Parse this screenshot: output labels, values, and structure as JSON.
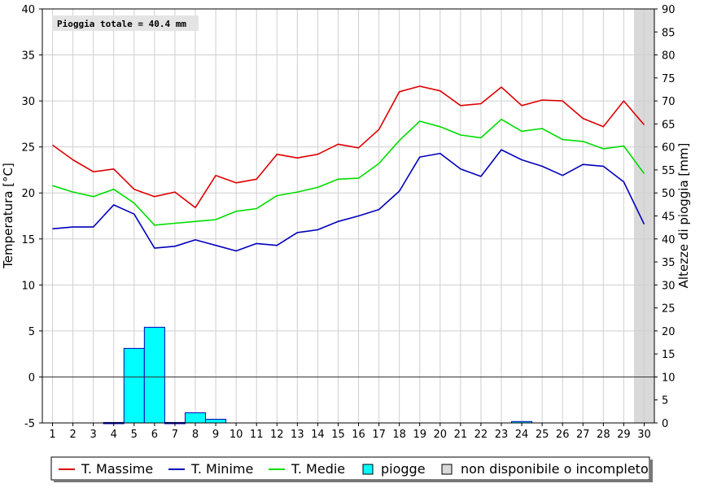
{
  "chart_data": {
    "type": "line",
    "annotation": "Pioggia totale = 40.4 mm",
    "ylabel": "Temperatura [°C]",
    "y2label": "Altezze di pioggia [mm]",
    "ylim": [
      -5,
      40
    ],
    "y2lim": [
      0,
      90
    ],
    "yticks": [
      -5,
      0,
      5,
      10,
      15,
      20,
      25,
      30,
      35,
      40
    ],
    "y2ticks": [
      0,
      5,
      10,
      15,
      20,
      25,
      30,
      35,
      40,
      45,
      50,
      55,
      60,
      65,
      70,
      75,
      80,
      85,
      90
    ],
    "x": [
      1,
      2,
      3,
      4,
      5,
      6,
      7,
      8,
      9,
      10,
      11,
      12,
      13,
      14,
      15,
      16,
      17,
      18,
      19,
      20,
      21,
      22,
      23,
      24,
      25,
      26,
      27,
      28,
      29,
      30
    ],
    "grid": true,
    "colors": {
      "max": "#dd0000",
      "min": "#0000bb",
      "mean": "#00dd00",
      "rain": "#00ffff",
      "unavailable": "#d9d9d9"
    },
    "series": [
      {
        "name": "T. Massime",
        "key": "max",
        "values": [
          25.2,
          23.6,
          22.3,
          22.6,
          20.4,
          19.6,
          20.1,
          18.4,
          21.9,
          21.1,
          21.5,
          24.2,
          23.8,
          24.2,
          25.3,
          24.9,
          26.9,
          31.0,
          31.6,
          31.1,
          29.5,
          29.7,
          31.5,
          29.5,
          30.1,
          30.0,
          28.1,
          27.2,
          30.0,
          27.4
        ]
      },
      {
        "name": "T. Minime",
        "key": "min",
        "values": [
          16.1,
          16.3,
          16.3,
          18.7,
          17.7,
          14.0,
          14.2,
          14.9,
          14.3,
          13.7,
          14.5,
          14.3,
          15.7,
          16.0,
          16.9,
          17.5,
          18.2,
          20.2,
          23.9,
          24.3,
          22.6,
          21.8,
          24.7,
          23.6,
          22.9,
          21.9,
          23.1,
          22.9,
          21.2,
          16.6
        ]
      },
      {
        "name": "T. Medie",
        "key": "mean",
        "values": [
          20.8,
          20.1,
          19.6,
          20.4,
          18.9,
          16.5,
          16.7,
          16.9,
          17.1,
          18.0,
          18.3,
          19.7,
          20.1,
          20.6,
          21.5,
          21.6,
          23.2,
          25.7,
          27.8,
          27.2,
          26.3,
          26.0,
          28.0,
          26.7,
          27.0,
          25.8,
          25.6,
          24.8,
          25.1,
          22.1
        ]
      }
    ],
    "rain": {
      "name": "piogge",
      "values": [
        0,
        0,
        0,
        0.1,
        16.2,
        20.8,
        0.1,
        2.2,
        0.8,
        0,
        0,
        0,
        0,
        0,
        0,
        0,
        0,
        0,
        0,
        0,
        0,
        0,
        0,
        0.3,
        0,
        0,
        0,
        0,
        0,
        0
      ]
    },
    "unavailable": {
      "name": "non disponibile o incompleto",
      "days": [
        30
      ]
    },
    "legend_position": "bottom"
  }
}
